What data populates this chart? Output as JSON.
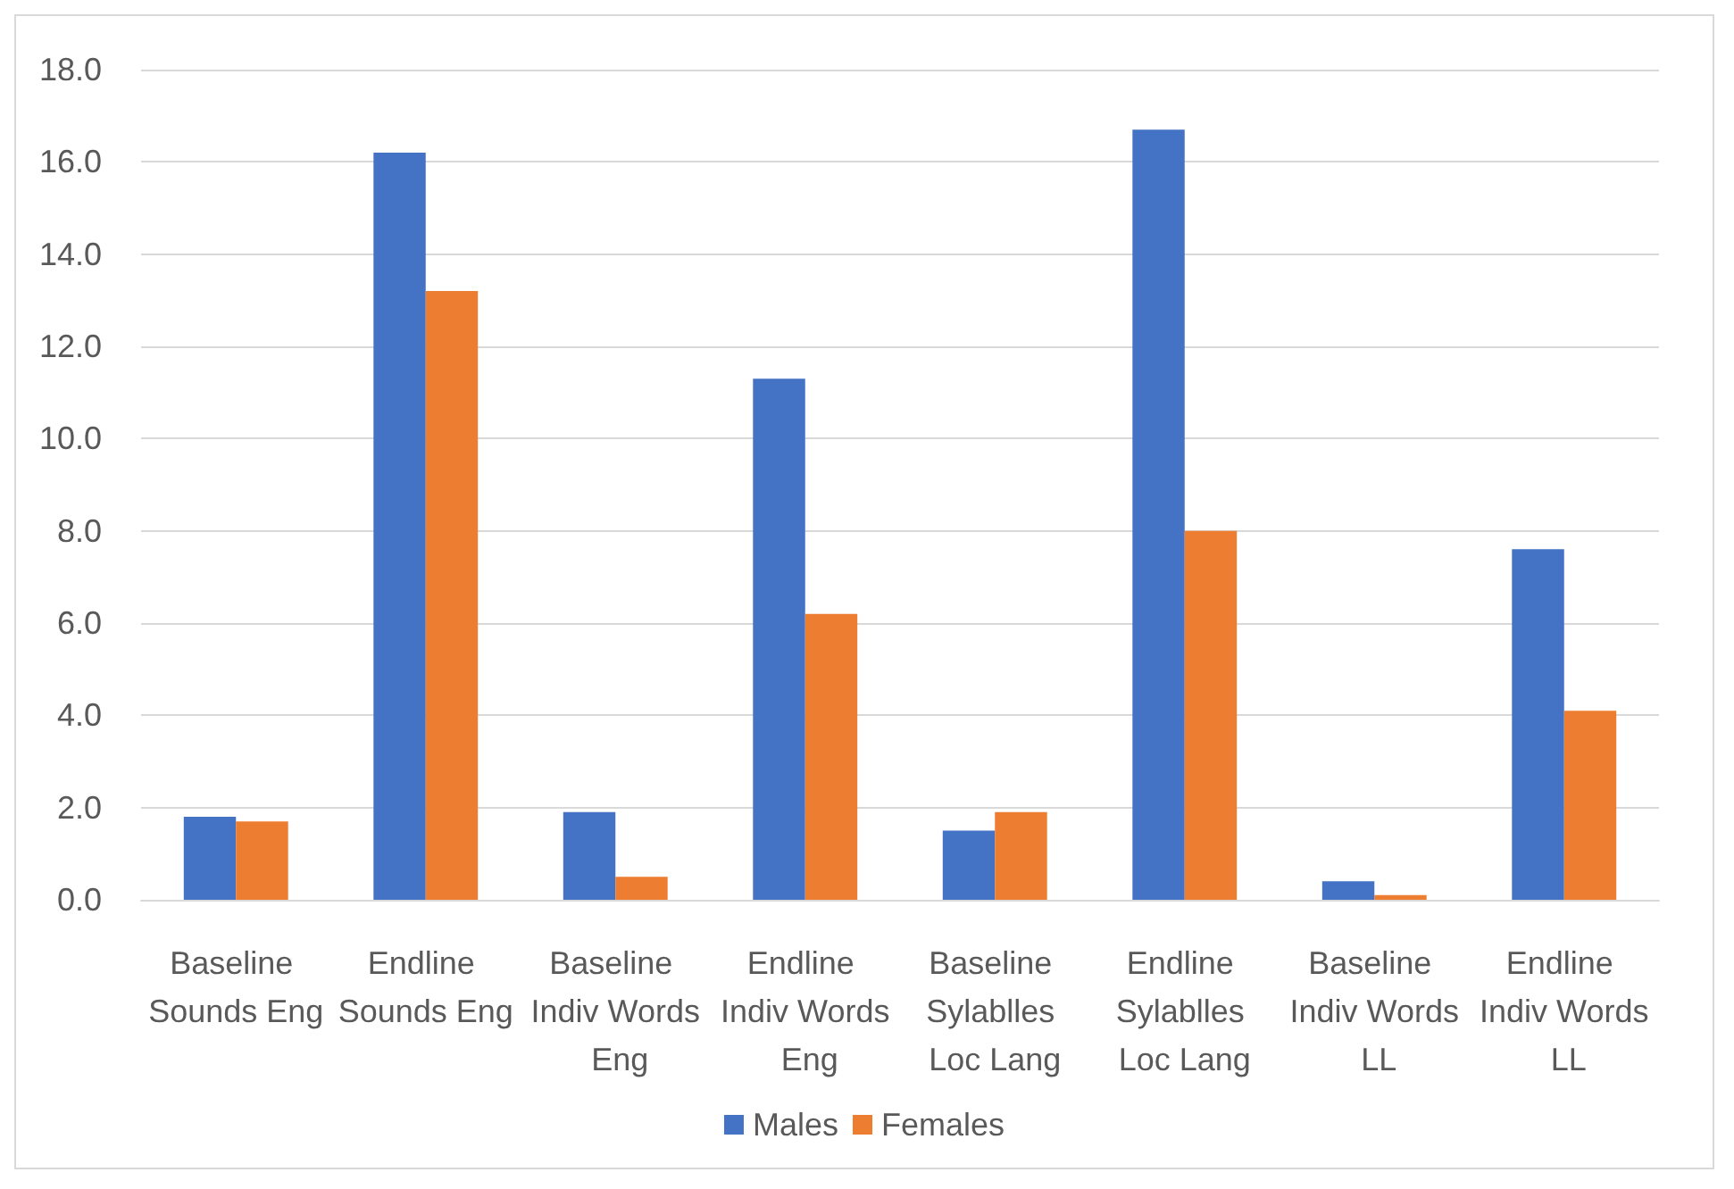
{
  "chart_data": {
    "type": "bar",
    "categories": [
      "Baseline Sounds Eng",
      "Endline Sounds Eng",
      "Baseline Indiv Words Eng",
      "Endline Indiv Words Eng",
      "Baseline Sylablles Loc Lang",
      "Endline Sylablles Loc Lang",
      "Baseline Indiv Words LL",
      "Endline Indiv Words LL"
    ],
    "series": [
      {
        "name": "Males",
        "color": "#4472c4",
        "values": [
          1.8,
          16.2,
          1.9,
          11.3,
          1.5,
          16.7,
          0.4,
          7.6
        ]
      },
      {
        "name": "Females",
        "color": "#ed7d31",
        "values": [
          1.7,
          13.2,
          0.5,
          6.2,
          1.9,
          8.0,
          0.1,
          4.1
        ]
      }
    ],
    "ylim": [
      0,
      18
    ],
    "yticks": [
      {
        "value": 0,
        "label": "0.0"
      },
      {
        "value": 2,
        "label": "2.0"
      },
      {
        "value": 4,
        "label": "4.0"
      },
      {
        "value": 6,
        "label": "6.0"
      },
      {
        "value": 8,
        "label": "8.0"
      },
      {
        "value": 10,
        "label": "10.0"
      },
      {
        "value": 12,
        "label": "12.0"
      },
      {
        "value": 14,
        "label": "14.0"
      },
      {
        "value": 16,
        "label": "16.0"
      },
      {
        "value": 18,
        "label": "18.0"
      }
    ],
    "grid": "y",
    "legend": "bottom"
  }
}
